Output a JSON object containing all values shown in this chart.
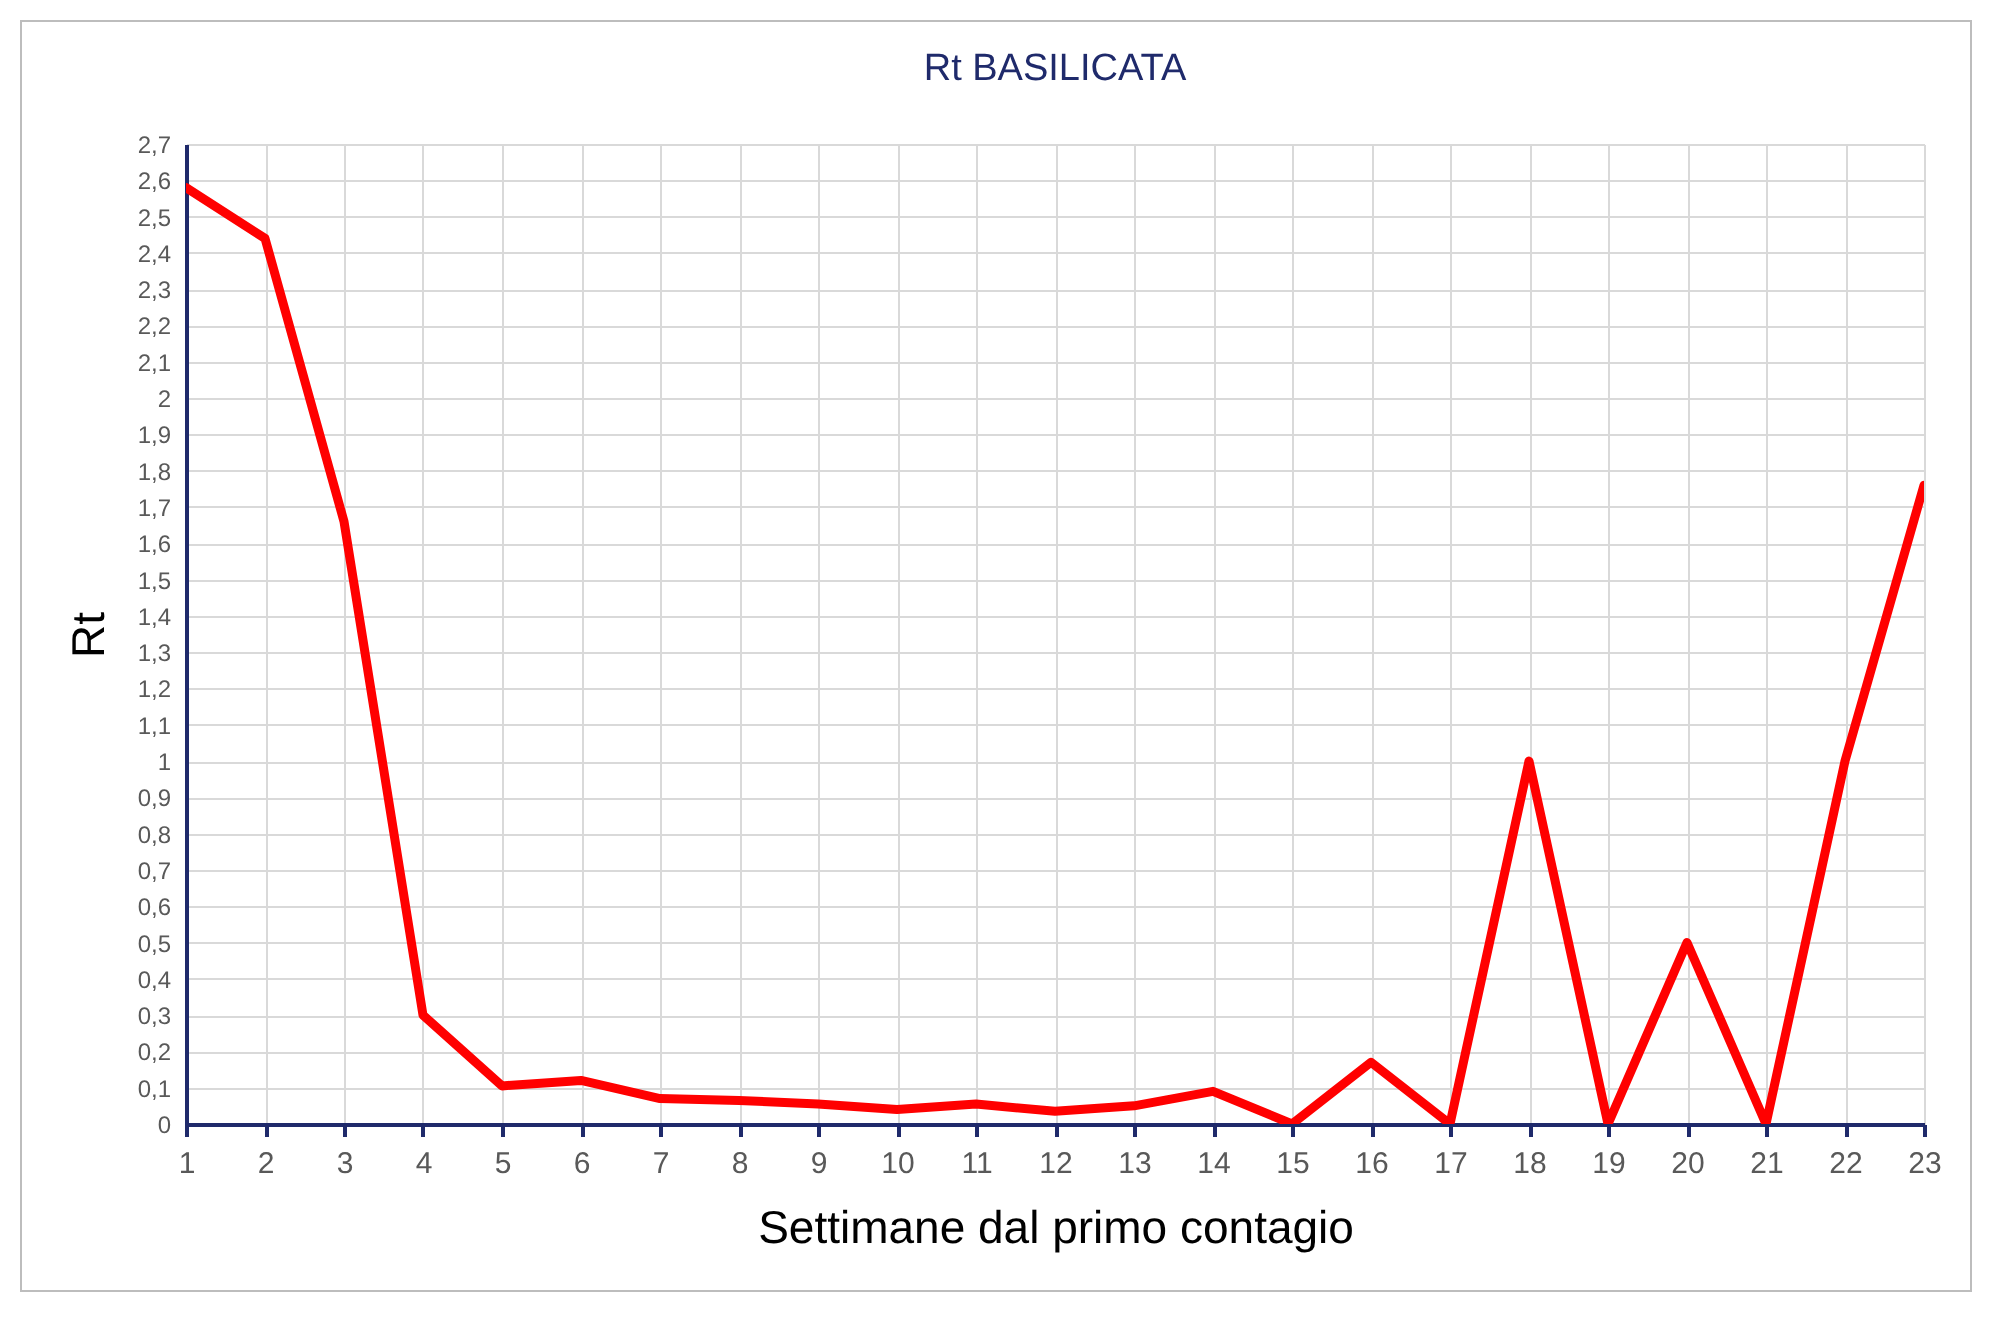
{
  "chart_data": {
    "type": "line",
    "title": "Rt BASILICATA",
    "xlabel": "Settimane dal primo contagio",
    "ylabel": "Rt",
    "x": [
      1,
      2,
      3,
      4,
      5,
      6,
      7,
      8,
      9,
      10,
      11,
      12,
      13,
      14,
      15,
      16,
      17,
      18,
      19,
      20,
      21,
      22,
      23
    ],
    "series": [
      {
        "color": "#ff0000",
        "values": [
          2.58,
          2.44,
          1.66,
          0.3,
          0.105,
          0.12,
          0.07,
          0.065,
          0.055,
          0.04,
          0.055,
          0.035,
          0.05,
          0.09,
          0,
          0.17,
          0,
          1.0,
          0,
          0.5,
          0,
          1.0,
          1.76
        ]
      }
    ],
    "xlim": [
      1,
      23
    ],
    "xticks": [
      1,
      2,
      3,
      4,
      5,
      6,
      7,
      8,
      9,
      10,
      11,
      12,
      13,
      14,
      15,
      16,
      17,
      18,
      19,
      20,
      21,
      22,
      23
    ],
    "ylim": [
      0,
      2.7
    ],
    "yticks": [
      0,
      {
        "value": 0.1,
        "label": "0,1"
      },
      {
        "value": 0.2,
        "label": "0,2"
      },
      {
        "value": 0.3,
        "label": "0,3"
      },
      {
        "value": 0.4,
        "label": "0,4"
      },
      {
        "value": 0.5,
        "label": "0,5"
      },
      {
        "value": 0.6,
        "label": "0,6"
      },
      {
        "value": 0.7,
        "label": "0,7"
      },
      {
        "value": 0.8,
        "label": "0,8"
      },
      {
        "value": 0.9,
        "label": "0,9"
      },
      1,
      {
        "value": 1.1,
        "label": "1,1"
      },
      {
        "value": 1.2,
        "label": "1,2"
      },
      {
        "value": 1.3,
        "label": "1,3"
      },
      {
        "value": 1.4,
        "label": "1,4"
      },
      {
        "value": 1.5,
        "label": "1,5"
      },
      {
        "value": 1.6,
        "label": "1,6"
      },
      {
        "value": 1.7,
        "label": "1,7"
      },
      {
        "value": 1.8,
        "label": "1,8"
      },
      {
        "value": 1.9,
        "label": "1,9"
      },
      2,
      {
        "value": 2.1,
        "label": "2,1"
      },
      {
        "value": 2.2,
        "label": "2,2"
      },
      {
        "value": 2.3,
        "label": "2,3"
      },
      {
        "value": 2.4,
        "label": "2,4"
      },
      {
        "value": 2.5,
        "label": "2,5"
      },
      {
        "value": 2.6,
        "label": "2,6"
      },
      {
        "value": 2.7,
        "label": "2,7"
      }
    ],
    "grid": true,
    "marker": "none",
    "line_style": "solid"
  }
}
